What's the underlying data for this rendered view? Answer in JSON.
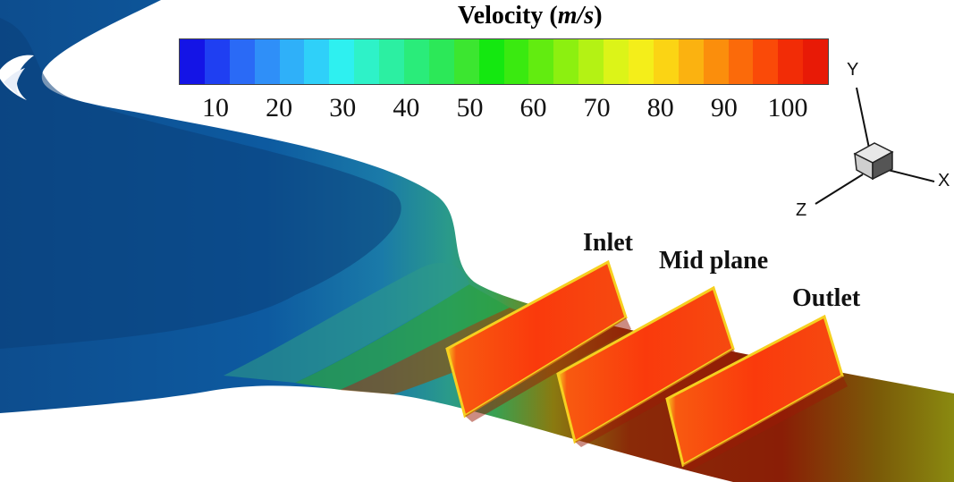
{
  "legend": {
    "title_prefix": "Velocity (",
    "title_unit": "m/s",
    "title_suffix": ")",
    "tick_labels": [
      "10",
      "20",
      "30",
      "40",
      "50",
      "60",
      "70",
      "80",
      "90",
      "100"
    ],
    "colors": [
      "#1414e6",
      "#1f3ff2",
      "#2a6af6",
      "#2f8ff8",
      "#2fb0f9",
      "#2fd0f9",
      "#2ef0f0",
      "#2ef2c8",
      "#2cefa2",
      "#2aec7a",
      "#2ce858",
      "#3ce630",
      "#14e810",
      "#3aea10",
      "#62ec10",
      "#8cf010",
      "#b4f214",
      "#dcf418",
      "#f4ee1a",
      "#fbd414",
      "#fbb210",
      "#fb8e0c",
      "#fb6a0a",
      "#fa4a08",
      "#f22c06",
      "#e81a06"
    ]
  },
  "planes": {
    "inlet": "Inlet",
    "mid": "Mid plane",
    "outlet": "Outlet"
  },
  "axes": {
    "x": "X",
    "y": "Y",
    "z": "Z"
  }
}
